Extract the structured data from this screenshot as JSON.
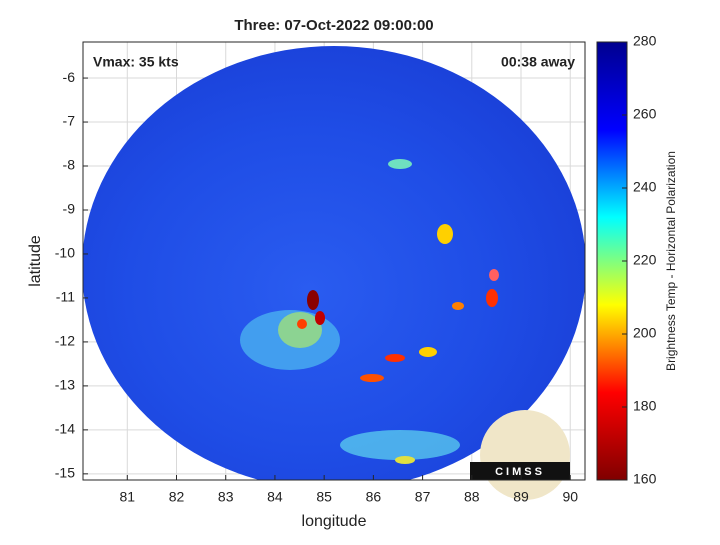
{
  "chart_data": {
    "type": "image",
    "title": "Three: 07-Oct-2022 09:00:00",
    "xlabel": "longitude",
    "ylabel": "latitude",
    "xlim": [
      80.1,
      90.3
    ],
    "xticks": [
      81,
      82,
      83,
      84,
      85,
      86,
      87,
      88,
      89,
      90
    ],
    "ylim": [
      -15.14,
      -5.18
    ],
    "yticks": [
      -15,
      -14,
      -13,
      -12,
      -11,
      -10,
      -9,
      -8,
      -7,
      -6
    ],
    "grid": true,
    "annotations": [
      "Vmax: 35 kts",
      "00:38 away"
    ],
    "logo": "CIMSS",
    "colorbar": {
      "label": "Brightness Temp - Horizontal Polarization",
      "clim": [
        160,
        280
      ],
      "ticks": [
        160,
        180,
        200,
        220,
        240,
        260,
        280
      ],
      "colormap": [
        "#800000",
        "#ff0000",
        "#ffff00",
        "#00ffff",
        "#0000ff",
        "#00008f"
      ]
    }
  }
}
